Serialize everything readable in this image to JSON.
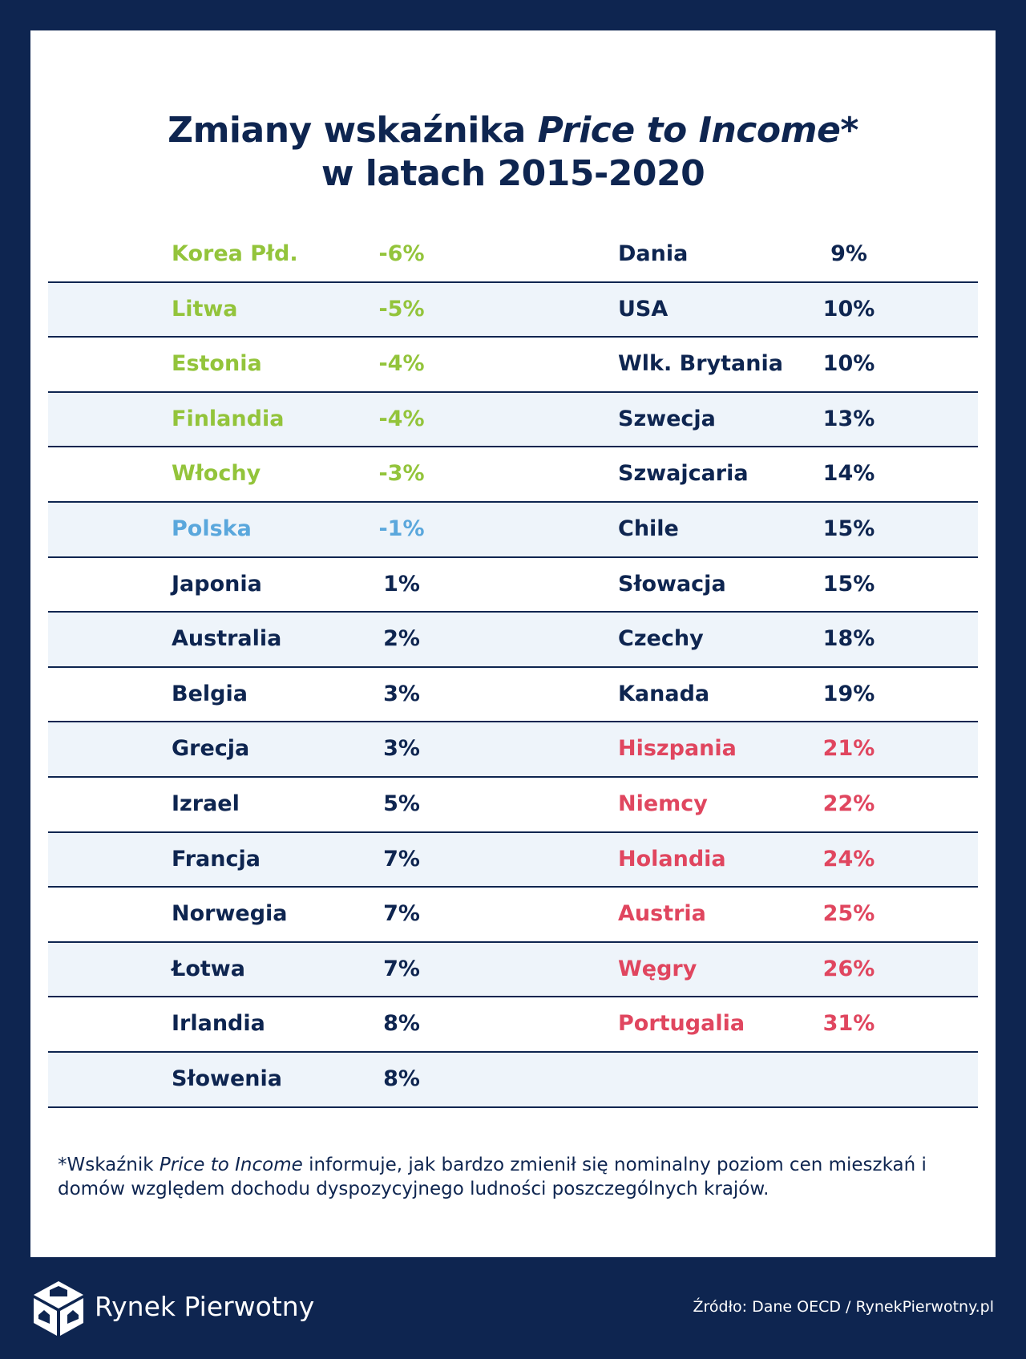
{
  "title": {
    "line1_pre": "Zmiany wskaźnika ",
    "line1_italic": "Price to Income",
    "line1_post": "*",
    "line2": "w latach 2015-2020"
  },
  "rows": [
    {
      "left_country": "Korea Płd.",
      "left_value": "-6%",
      "left_color": "green",
      "right_country": "Dania",
      "right_value": "9%",
      "right_color": "navy"
    },
    {
      "left_country": "Litwa",
      "left_value": "-5%",
      "left_color": "green",
      "right_country": "USA",
      "right_value": "10%",
      "right_color": "navy"
    },
    {
      "left_country": "Estonia",
      "left_value": "-4%",
      "left_color": "green",
      "right_country": "Wlk. Brytania",
      "right_value": "10%",
      "right_color": "navy"
    },
    {
      "left_country": "Finlandia",
      "left_value": "-4%",
      "left_color": "green",
      "right_country": "Szwecja",
      "right_value": "13%",
      "right_color": "navy"
    },
    {
      "left_country": "Włochy",
      "left_value": "-3%",
      "left_color": "green",
      "right_country": "Szwajcaria",
      "right_value": "14%",
      "right_color": "navy"
    },
    {
      "left_country": "Polska",
      "left_value": "-1%",
      "left_color": "blue",
      "right_country": "Chile",
      "right_value": "15%",
      "right_color": "navy"
    },
    {
      "left_country": "Japonia",
      "left_value": "1%",
      "left_color": "navy",
      "right_country": "Słowacja",
      "right_value": "15%",
      "right_color": "navy"
    },
    {
      "left_country": "Australia",
      "left_value": "2%",
      "left_color": "navy",
      "right_country": "Czechy",
      "right_value": "18%",
      "right_color": "navy"
    },
    {
      "left_country": "Belgia",
      "left_value": "3%",
      "left_color": "navy",
      "right_country": "Kanada",
      "right_value": "19%",
      "right_color": "navy"
    },
    {
      "left_country": "Grecja",
      "left_value": "3%",
      "left_color": "navy",
      "right_country": "Hiszpania",
      "right_value": "21%",
      "right_color": "red"
    },
    {
      "left_country": "Izrael",
      "left_value": "5%",
      "left_color": "navy",
      "right_country": "Niemcy",
      "right_value": "22%",
      "right_color": "red"
    },
    {
      "left_country": "Francja",
      "left_value": "7%",
      "left_color": "navy",
      "right_country": "Holandia",
      "right_value": "24%",
      "right_color": "red"
    },
    {
      "left_country": "Norwegia",
      "left_value": "7%",
      "left_color": "navy",
      "right_country": "Austria",
      "right_value": "25%",
      "right_color": "red"
    },
    {
      "left_country": "Łotwa",
      "left_value": "7%",
      "left_color": "navy",
      "right_country": "Węgry",
      "right_value": "26%",
      "right_color": "red"
    },
    {
      "left_country": "Irlandia",
      "left_value": "8%",
      "left_color": "navy",
      "right_country": "Portugalia",
      "right_value": "31%",
      "right_color": "red"
    },
    {
      "left_country": "Słowenia",
      "left_value": "8%",
      "left_color": "navy",
      "right_country": "",
      "right_value": "",
      "right_color": "navy"
    }
  ],
  "colors": {
    "navy": "#0e2550",
    "green": "#93c43b",
    "blue": "#5aa7dc",
    "red": "#e0465f",
    "row_alt": "#eef4fa"
  },
  "footnote": {
    "pre": "*Wskaźnik ",
    "italic": "Price to Income",
    "post": " informuje, jak bardzo zmienił się nominalny poziom cen mieszkań i domów względem dochodu dyspozycyjnego ludności poszczególnych krajów."
  },
  "footer": {
    "brand": "Rynek Pierwotny",
    "logo_icon": "cube-house-logo-icon",
    "source": "Źródło: Dane OECD / RynekPierwotny.pl"
  }
}
